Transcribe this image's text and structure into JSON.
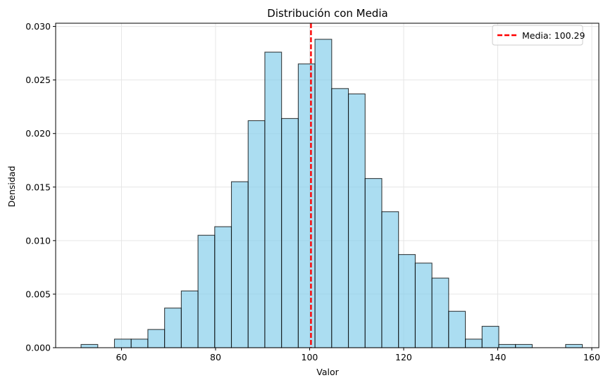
{
  "chart_data": {
    "type": "bar",
    "title": "Distribución con Media",
    "xlabel": "Valor",
    "ylabel": "Densidad",
    "xlim": [
      46,
      161.5
    ],
    "ylim": [
      0,
      0.0303
    ],
    "x_ticks": [
      60,
      80,
      100,
      120,
      140,
      160
    ],
    "y_ticks": [
      0.0,
      0.005,
      0.01,
      0.015,
      0.02,
      0.025,
      0.03
    ],
    "x_tick_labels": [
      "60",
      "80",
      "100",
      "120",
      "140",
      "160"
    ],
    "y_tick_labels": [
      "0.000",
      "0.005",
      "0.010",
      "0.015",
      "0.020",
      "0.025",
      "0.030"
    ],
    "grid": true,
    "bin_start": 51.4,
    "bin_width": 3.553,
    "values": [
      0.0003,
      0.0,
      0.0008,
      0.0008,
      0.0017,
      0.0037,
      0.0053,
      0.0105,
      0.0113,
      0.0155,
      0.0212,
      0.0276,
      0.0214,
      0.0265,
      0.0288,
      0.0242,
      0.0237,
      0.0158,
      0.0127,
      0.0087,
      0.0079,
      0.0065,
      0.0034,
      0.0008,
      0.002,
      0.0003,
      0.0003,
      0.0,
      0.0,
      0.0003
    ],
    "bar_color": "#87CEEB",
    "bar_edge_color": "#000000",
    "mean": {
      "value": 100.29,
      "color": "#ff0000",
      "style": "dashed",
      "label": "Media: 100.29"
    },
    "legend_placement": "top-right"
  }
}
